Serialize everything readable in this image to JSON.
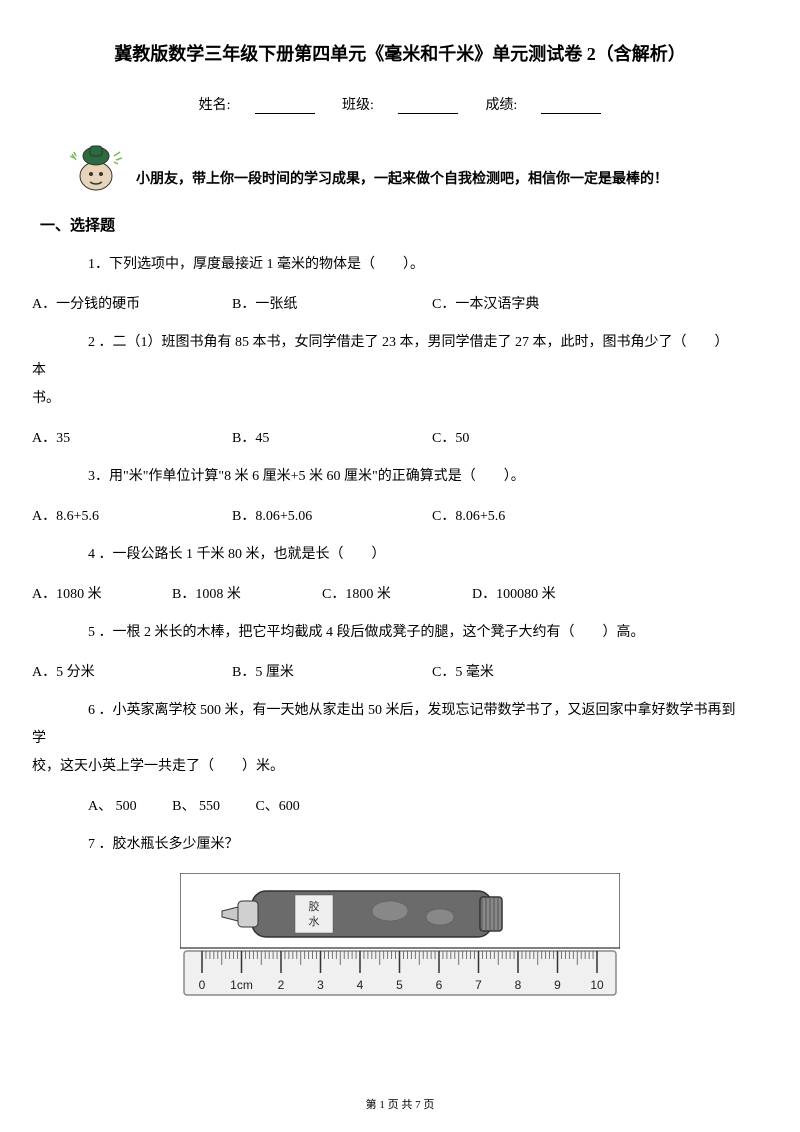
{
  "title": "冀教版数学三年级下册第四单元《毫米和千米》单元测试卷 2（含解析）",
  "info": {
    "name_label": "姓名:",
    "class_label": "班级:",
    "score_label": "成绩:"
  },
  "encourage": "小朋友，带上你一段时间的学习成果，一起来做个自我检测吧，相信你一定是最棒的！",
  "section1": "一、选择题",
  "q1": {
    "text": "1．下列选项中，厚度最接近 1 毫米的物体是（　　）。",
    "a": "A．一分钱的硬币",
    "b": "B．一张纸",
    "c": "C．一本汉语字典"
  },
  "q2": {
    "line1": "2 ．二（1）班图书角有 85 本书，女同学借走了 23 本，男同学借走了 27 本，此时，图书角少了（　　）本",
    "line2": "书。",
    "a": "A．35",
    "b": "B．45",
    "c": "C．50"
  },
  "q3": {
    "text": "3．用\"米\"作单位计算\"8 米 6 厘米+5 米 60 厘米\"的正确算式是（　　）。",
    "a": "A．8.6+5.6",
    "b": "B．8.06+5.06",
    "c": "C．8.06+5.6"
  },
  "q4": {
    "text": "4 ．一段公路长 1 千米 80 米，也就是长（　　）",
    "a": "A．1080 米",
    "b": "B．1008 米",
    "c": "C．1800 米",
    "d": "D．100080 米"
  },
  "q5": {
    "text": "5 ．一根 2 米长的木棒，把它平均截成 4 段后做成凳子的腿，这个凳子大约有（　　）高。",
    "a": "A．5 分米",
    "b": "B．5 厘米",
    "c": "C．5 毫米"
  },
  "q6": {
    "line1": "6 ．小英家离学校 500 米，有一天她从家走出 50 米后，发现忘记带数学书了，又返回家中拿好数学书再到学",
    "line2": "校，这天小英上学一共走了（　　）米。",
    "a": "A、 500",
    "b": "B、 550",
    "c": "C、600"
  },
  "q7": {
    "text": "7 ．胶水瓶长多少厘米？"
  },
  "footer": "第 1 页 共 7 页",
  "ruler": {
    "labels": [
      "0",
      "1cm",
      "2",
      "3",
      "4",
      "5",
      "6",
      "7",
      "8",
      "9",
      "10"
    ],
    "bottle_color": "#6b6b6b",
    "ruler_bg": "#f0f0f0",
    "ruler_border": "#888888"
  },
  "mascot_colors": {
    "cap": "#2d6b3e",
    "face": "#e8d4b8",
    "sparkle": "#7bb85a"
  }
}
